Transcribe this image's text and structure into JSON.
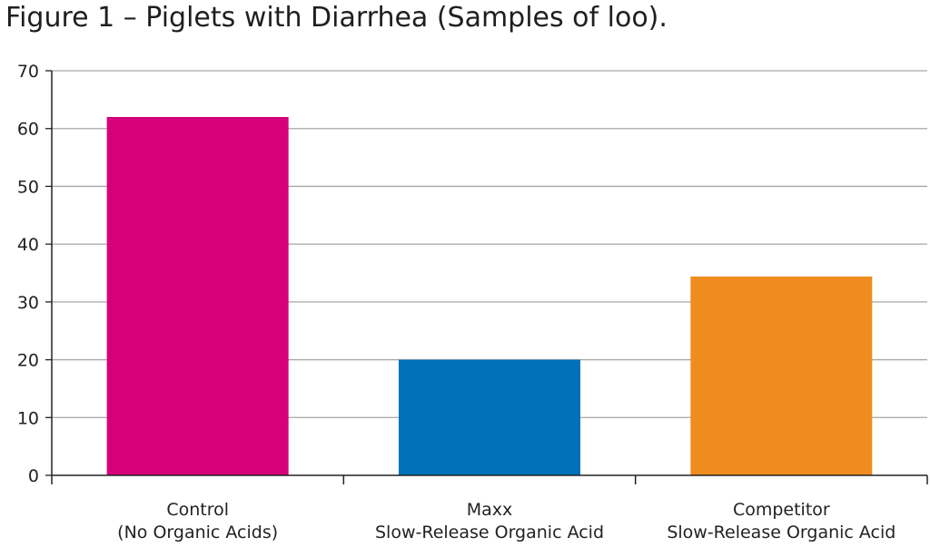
{
  "chart_data": {
    "type": "bar",
    "title": "Figure 1 – Piglets with Diarrhea (Samples of loo).",
    "categories": [
      [
        "Control",
        "(No Organic Acids)"
      ],
      [
        "Maxx",
        "Slow-Release Organic Acid"
      ],
      [
        "Competitor",
        "Slow-Release Organic Acid"
      ]
    ],
    "values": [
      62,
      20,
      34.4
    ],
    "colors": [
      "#d6007a",
      "#0070bb",
      "#ef8c1e"
    ],
    "ylim": [
      0,
      70
    ],
    "yticks": [
      0,
      10,
      20,
      30,
      40,
      50,
      60,
      70
    ],
    "grid": true,
    "xlabel": "",
    "ylabel": ""
  }
}
